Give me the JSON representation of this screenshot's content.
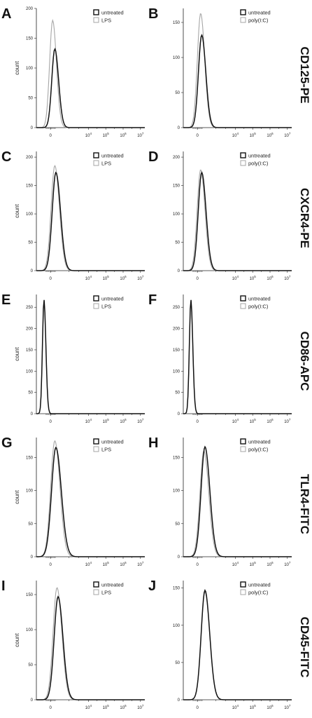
{
  "chart_data": [
    {
      "panel": "A",
      "row": 0,
      "col": 0,
      "type": "line",
      "ylabel": "count",
      "ylim": [
        0,
        200
      ],
      "yticks": [
        0,
        50,
        100,
        150,
        200
      ],
      "xticks": [
        "0",
        "10^4",
        "10^5",
        "10^6",
        "10^7"
      ],
      "series": [
        {
          "name": "untreated",
          "color": "#111111",
          "peak_x": 0.17,
          "width": 0.028,
          "peak": 132
        },
        {
          "name": "LPS",
          "color": "#a6a6a6",
          "peak_x": 0.15,
          "width": 0.028,
          "peak": 180
        }
      ]
    },
    {
      "panel": "B",
      "row": 0,
      "col": 1,
      "type": "line",
      "ylabel": "",
      "ylim": [
        0,
        170
      ],
      "yticks": [
        0,
        50,
        100,
        150
      ],
      "xticks": [
        "0",
        "10^4",
        "10^5",
        "10^6",
        "10^7"
      ],
      "series": [
        {
          "name": "untreated",
          "color": "#111111",
          "peak_x": 0.17,
          "width": 0.03,
          "peak": 132
        },
        {
          "name": "poly(I:C)",
          "color": "#a6a6a6",
          "peak_x": 0.16,
          "width": 0.03,
          "peak": 163
        }
      ]
    },
    {
      "panel": "C",
      "row": 1,
      "col": 0,
      "type": "line",
      "ylabel": "count",
      "ylim": [
        0,
        210
      ],
      "yticks": [
        0,
        50,
        100,
        150,
        200
      ],
      "xticks": [
        "0",
        "10^4",
        "10^5",
        "10^6",
        "10^7"
      ],
      "series": [
        {
          "name": "untreated",
          "color": "#111111",
          "peak_x": 0.18,
          "width": 0.034,
          "peak": 173
        },
        {
          "name": "LPS",
          "color": "#a6a6a6",
          "peak_x": 0.17,
          "width": 0.034,
          "peak": 185
        }
      ]
    },
    {
      "panel": "D",
      "row": 1,
      "col": 1,
      "type": "line",
      "ylabel": "",
      "ylim": [
        0,
        210
      ],
      "yticks": [
        0,
        50,
        100,
        150,
        200
      ],
      "xticks": [
        "0",
        "10^4",
        "10^5",
        "10^6",
        "10^7"
      ],
      "series": [
        {
          "name": "untreated",
          "color": "#111111",
          "peak_x": 0.17,
          "width": 0.032,
          "peak": 173
        },
        {
          "name": "poly(I:C)",
          "color": "#a6a6a6",
          "peak_x": 0.16,
          "width": 0.032,
          "peak": 178
        }
      ]
    },
    {
      "panel": "E",
      "row": 2,
      "col": 0,
      "type": "line",
      "ylabel": "count",
      "ylim": [
        0,
        280
      ],
      "yticks": [
        0,
        50,
        100,
        150,
        200,
        250
      ],
      "xticks": [
        "0",
        "10^4",
        "10^5",
        "10^6",
        "10^7"
      ],
      "series": [
        {
          "name": "untreated",
          "color": "#111111",
          "peak_x": 0.07,
          "width": 0.014,
          "peak": 268
        },
        {
          "name": "LPS",
          "color": "#a6a6a6",
          "peak_x": 0.07,
          "width": 0.014,
          "peak": 266
        }
      ]
    },
    {
      "panel": "F",
      "row": 2,
      "col": 1,
      "type": "line",
      "ylabel": "",
      "ylim": [
        0,
        280
      ],
      "yticks": [
        0,
        50,
        100,
        150,
        200,
        250
      ],
      "xticks": [
        "0",
        "10^4",
        "10^5",
        "10^6",
        "10^7"
      ],
      "series": [
        {
          "name": "untreated",
          "color": "#111111",
          "peak_x": 0.07,
          "width": 0.014,
          "peak": 268
        },
        {
          "name": "poly(I:C)",
          "color": "#a6a6a6",
          "peak_x": 0.07,
          "width": 0.014,
          "peak": 266
        }
      ]
    },
    {
      "panel": "G",
      "row": 3,
      "col": 0,
      "type": "line",
      "ylabel": "count",
      "ylim": [
        0,
        180
      ],
      "yticks": [
        0,
        50,
        100,
        150
      ],
      "xticks": [
        "0",
        "10^4",
        "10^5",
        "10^6",
        "10^7"
      ],
      "series": [
        {
          "name": "untreated",
          "color": "#111111",
          "peak_x": 0.18,
          "width": 0.04,
          "peak": 165
        },
        {
          "name": "LPS",
          "color": "#a6a6a6",
          "peak_x": 0.17,
          "width": 0.038,
          "peak": 175
        }
      ]
    },
    {
      "panel": "H",
      "row": 3,
      "col": 1,
      "type": "line",
      "ylabel": "",
      "ylim": [
        0,
        180
      ],
      "yticks": [
        0,
        50,
        100,
        150
      ],
      "xticks": [
        "0",
        "10^4",
        "10^5",
        "10^6",
        "10^7"
      ],
      "series": [
        {
          "name": "untreated",
          "color": "#111111",
          "peak_x": 0.2,
          "width": 0.036,
          "peak": 166
        },
        {
          "name": "poly(I:C)",
          "color": "#a6a6a6",
          "peak_x": 0.19,
          "width": 0.036,
          "peak": 160
        }
      ]
    },
    {
      "panel": "I",
      "row": 4,
      "col": 0,
      "type": "line",
      "ylabel": "count",
      "ylim": [
        0,
        170
      ],
      "yticks": [
        0,
        50,
        100,
        150
      ],
      "xticks": [
        "0",
        "10^4",
        "10^5",
        "10^6",
        "10^7"
      ],
      "series": [
        {
          "name": "untreated",
          "color": "#111111",
          "peak_x": 0.2,
          "width": 0.036,
          "peak": 147
        },
        {
          "name": "LPS",
          "color": "#a6a6a6",
          "peak_x": 0.19,
          "width": 0.036,
          "peak": 160
        }
      ]
    },
    {
      "panel": "J",
      "row": 4,
      "col": 1,
      "type": "line",
      "ylabel": "",
      "ylim": [
        0,
        160
      ],
      "yticks": [
        0,
        50,
        100,
        150
      ],
      "xticks": [
        "0",
        "10^4",
        "10^5",
        "10^6",
        "10^7"
      ],
      "series": [
        {
          "name": "untreated",
          "color": "#111111",
          "peak_x": 0.2,
          "width": 0.035,
          "peak": 147
        },
        {
          "name": "poly(I:C)",
          "color": "#a6a6a6",
          "peak_x": 0.2,
          "width": 0.035,
          "peak": 145
        }
      ]
    }
  ],
  "row_labels": [
    "CD125-PE",
    "CXCR4-PE",
    "CD86-APC",
    "TLR4-FITC",
    "CD45-FITC"
  ]
}
